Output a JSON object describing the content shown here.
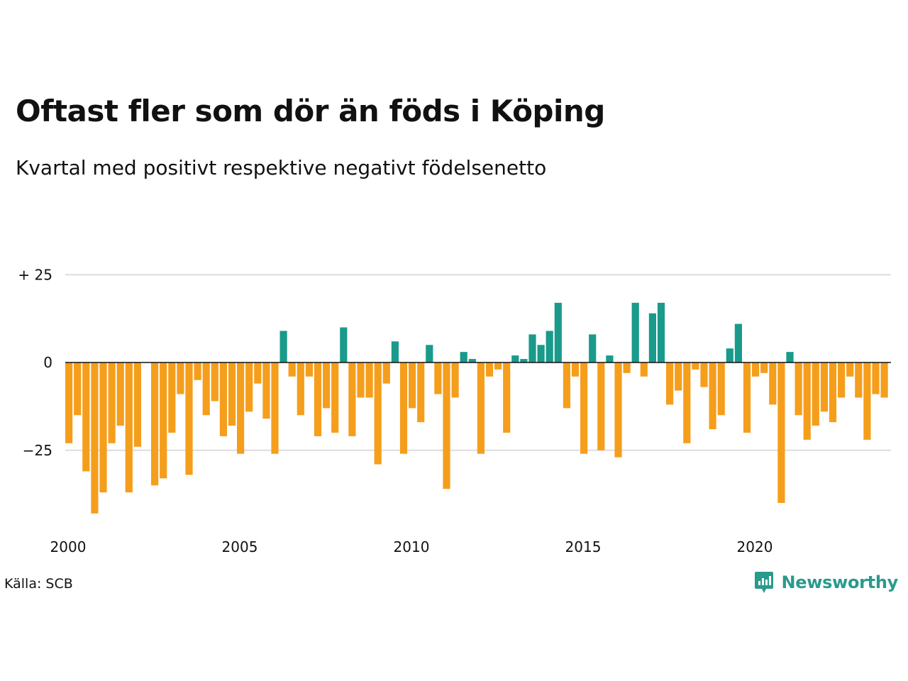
{
  "header": {
    "title": "Oftast fler som dör än föds i Köping",
    "subtitle": "Kvartal med positivt respektive negativt födelsenetto"
  },
  "footer": {
    "source": "Källa: SCB",
    "brand": "Newsworthy",
    "brand_icon": "newsworthy-logo-icon"
  },
  "colors": {
    "positive": "#1a9a8a",
    "negative": "#f59e1c",
    "grid": "#dddddd",
    "zero_line": "#111111"
  },
  "chart_data": {
    "type": "bar",
    "xlabel": "",
    "ylabel": "",
    "ylim": [
      -45,
      27
    ],
    "grid": true,
    "y_ticks": [
      {
        "value": 25,
        "label": "+ 25"
      },
      {
        "value": 0,
        "label": "0"
      },
      {
        "value": -25,
        "label": "−25"
      }
    ],
    "x_ticks": [
      {
        "value": 2000,
        "label": "2000"
      },
      {
        "value": 2005,
        "label": "2005"
      },
      {
        "value": 2010,
        "label": "2010"
      },
      {
        "value": 2015,
        "label": "2015"
      },
      {
        "value": 2020,
        "label": "2020"
      }
    ],
    "start_year": 2000,
    "quarters_per_year": 4,
    "values": [
      -23,
      -15,
      -31,
      -43,
      -37,
      -23,
      -18,
      -37,
      -24,
      0,
      -35,
      -33,
      -20,
      -9,
      -32,
      -5,
      -15,
      -11,
      -21,
      -18,
      -26,
      -14,
      -6,
      -16,
      -26,
      9,
      -4,
      -15,
      -4,
      -21,
      -13,
      -20,
      10,
      -21,
      -10,
      -10,
      -29,
      -6,
      6,
      -26,
      -13,
      -17,
      5,
      -9,
      -36,
      -10,
      3,
      1,
      -26,
      -4,
      -2,
      -20,
      2,
      1,
      8,
      5,
      9,
      17,
      -13,
      -4,
      -26,
      8,
      -25,
      2,
      -27,
      -3,
      17,
      -4,
      14,
      17,
      -12,
      -8,
      -23,
      -2,
      -7,
      -19,
      -15,
      4,
      11,
      -20,
      -4,
      -3,
      -12,
      -40,
      3,
      -15,
      -22,
      -18,
      -14,
      -17,
      -10,
      -4,
      -10,
      -22,
      -9,
      -10
    ]
  }
}
